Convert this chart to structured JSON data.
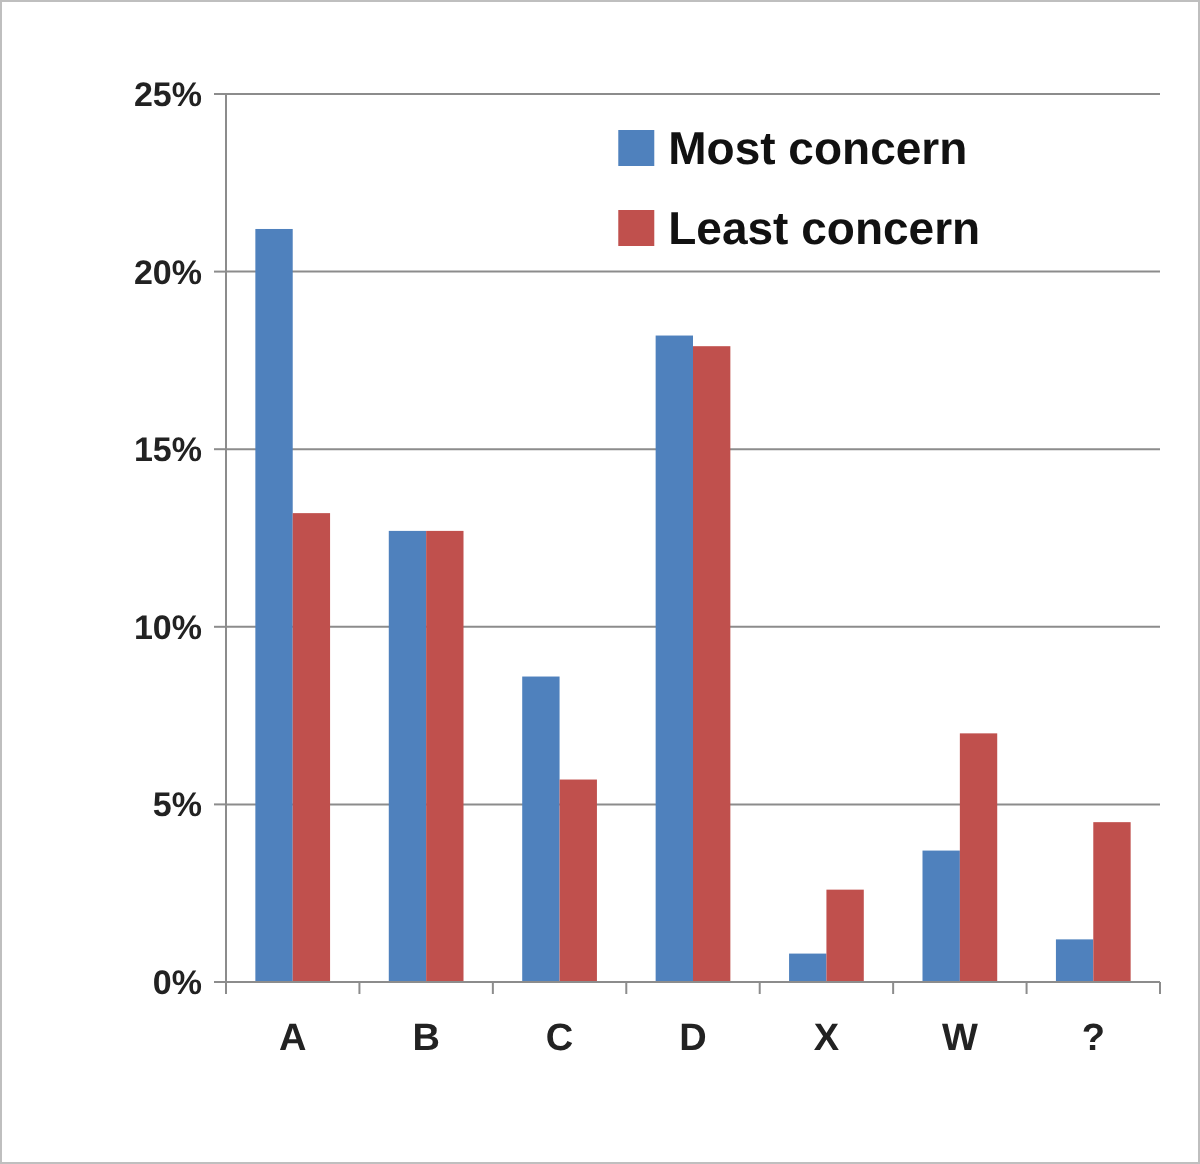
{
  "chart_data": {
    "type": "bar",
    "categories": [
      "A",
      "B",
      "C",
      "D",
      "X",
      "W",
      "?"
    ],
    "series": [
      {
        "name": "Most concern",
        "color": "#4f81bd",
        "values": [
          21.2,
          12.7,
          8.6,
          18.2,
          0.8,
          3.7,
          1.2
        ]
      },
      {
        "name": "Least concern",
        "color": "#c0504d",
        "values": [
          13.2,
          12.7,
          5.7,
          17.9,
          2.6,
          7.0,
          4.5
        ]
      }
    ],
    "ylim": [
      0,
      25
    ],
    "yticks": [
      {
        "value": 0,
        "label": "0%"
      },
      {
        "value": 5,
        "label": "5%"
      },
      {
        "value": 10,
        "label": "10%"
      },
      {
        "value": 15,
        "label": "15%"
      },
      {
        "value": 20,
        "label": "20%"
      },
      {
        "value": 25,
        "label": "25%"
      }
    ],
    "grid": "y",
    "legend": "top right"
  }
}
